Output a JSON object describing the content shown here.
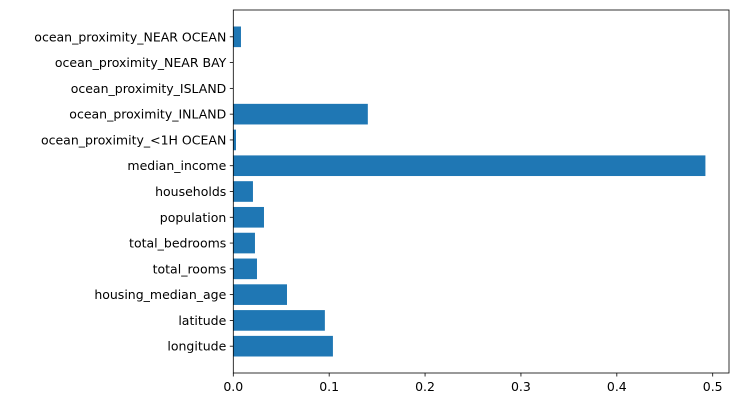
{
  "chart_data": {
    "type": "bar",
    "orientation": "horizontal",
    "title": "",
    "xlabel": "",
    "ylabel": "",
    "categories": [
      "longitude",
      "latitude",
      "housing_median_age",
      "total_rooms",
      "total_bedrooms",
      "population",
      "households",
      "median_income",
      "ocean_proximity_<1H OCEAN",
      "ocean_proximity_INLAND",
      "ocean_proximity_ISLAND",
      "ocean_proximity_NEAR BAY",
      "ocean_proximity_NEAR OCEAN"
    ],
    "values": [
      0.1039,
      0.0955,
      0.056,
      0.0247,
      0.0226,
      0.032,
      0.0205,
      0.4924,
      0.0028,
      0.1403,
      0.0,
      0.0,
      0.008
    ],
    "xlim": [
      0,
      0.517
    ],
    "xticks": [
      "0.0",
      "0.1",
      "0.2",
      "0.3",
      "0.4",
      "0.5"
    ],
    "grid": false,
    "color": "#1f77b4"
  }
}
